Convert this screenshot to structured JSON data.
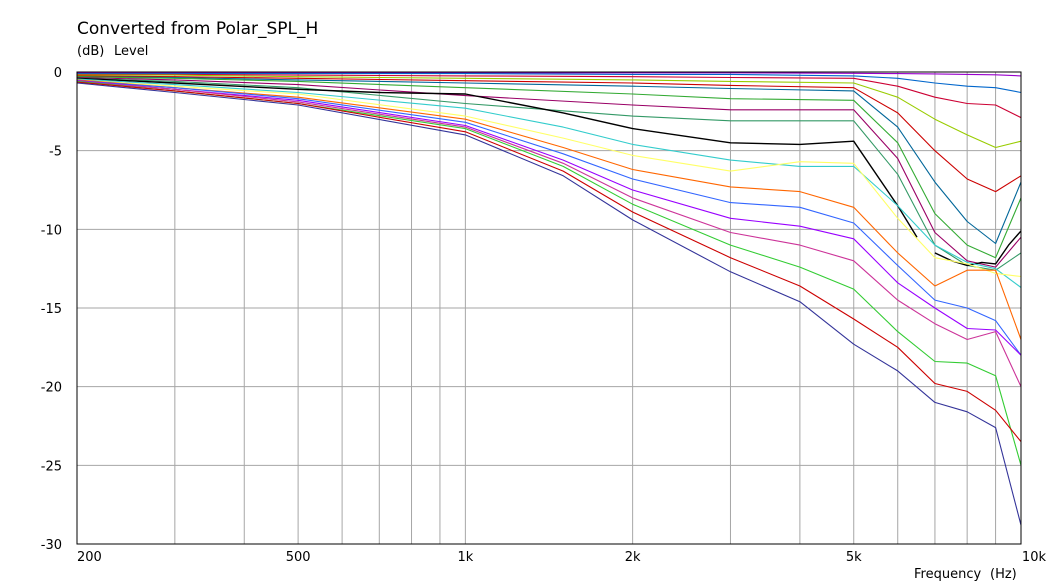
{
  "chart_data": {
    "type": "line",
    "title": "Converted from Polar_SPL_H",
    "y_unit": "(dB)",
    "ylabel": "Level",
    "xlabel": "Frequency",
    "x_unit": "(Hz)",
    "x_scale": "log",
    "xlim": [
      200,
      10000
    ],
    "ylim": [
      -30,
      0
    ],
    "x_tick_labels": [
      {
        "value": 200,
        "label": "200"
      },
      {
        "value": 500,
        "label": "500"
      },
      {
        "value": 1000,
        "label": "1k"
      },
      {
        "value": 2000,
        "label": "2k"
      },
      {
        "value": 5000,
        "label": "5k"
      },
      {
        "value": 10000,
        "label": "10k"
      }
    ],
    "y_tick_labels": [
      {
        "value": 0,
        "label": "0"
      },
      {
        "value": -5,
        "label": "-5"
      },
      {
        "value": -10,
        "label": "-10"
      },
      {
        "value": -15,
        "label": "-15"
      },
      {
        "value": -20,
        "label": "-20"
      },
      {
        "value": -25,
        "label": "-25"
      },
      {
        "value": -30,
        "label": "-30"
      }
    ],
    "grid": true,
    "series": [
      {
        "color": "#ff9900",
        "x": [
          200,
          300,
          500,
          1000,
          2000,
          3000,
          5000,
          7000,
          10000
        ],
        "y": [
          0,
          0,
          0,
          0,
          0,
          0,
          0,
          0,
          0
        ]
      },
      {
        "color": "#9900cc",
        "x": [
          200,
          300,
          500,
          1000,
          2000,
          3000,
          5000,
          6000,
          7000,
          8000,
          9000,
          10000
        ],
        "y": [
          -0.05,
          -0.05,
          -0.05,
          -0.05,
          -0.05,
          -0.05,
          -0.08,
          -0.1,
          -0.12,
          -0.15,
          -0.18,
          -0.25
        ]
      },
      {
        "color": "#0066cc",
        "x": [
          200,
          300,
          500,
          1000,
          2000,
          3000,
          5000,
          6000,
          7000,
          8000,
          9000,
          10000
        ],
        "y": [
          -0.1,
          -0.1,
          -0.1,
          -0.1,
          -0.15,
          -0.15,
          -0.25,
          -0.4,
          -0.7,
          -0.9,
          -1.0,
          -1.3
        ]
      },
      {
        "color": "#cc0033",
        "x": [
          200,
          300,
          500,
          1000,
          2000,
          3000,
          5000,
          6000,
          7000,
          8000,
          9000,
          10000
        ],
        "y": [
          -0.15,
          -0.15,
          -0.2,
          -0.25,
          -0.3,
          -0.35,
          -0.4,
          -0.9,
          -1.6,
          -2.0,
          -2.1,
          -2.9
        ]
      },
      {
        "color": "#99cc00",
        "x": [
          200,
          300,
          500,
          1000,
          2000,
          3000,
          5000,
          6000,
          7000,
          8000,
          9000,
          10000
        ],
        "y": [
          -0.2,
          -0.2,
          -0.3,
          -0.4,
          -0.5,
          -0.6,
          -0.7,
          -1.6,
          -3.0,
          -4.0,
          -4.8,
          -4.4
        ]
      },
      {
        "color": "#cc0000",
        "x": [
          200,
          300,
          500,
          1000,
          2000,
          3000,
          5000,
          6000,
          7000,
          8000,
          9000,
          10000
        ],
        "y": [
          -0.25,
          -0.3,
          -0.4,
          -0.55,
          -0.7,
          -0.85,
          -1.0,
          -2.6,
          -5.0,
          -6.8,
          -7.6,
          -6.6
        ]
      },
      {
        "color": "#006699",
        "x": [
          200,
          300,
          500,
          1000,
          2000,
          3000,
          5000,
          6000,
          7000,
          8000,
          9000,
          10000
        ],
        "y": [
          -0.3,
          -0.35,
          -0.5,
          -0.7,
          -0.9,
          -1.05,
          -1.2,
          -3.5,
          -7.0,
          -9.5,
          -10.9,
          -7.0
        ]
      },
      {
        "color": "#33aa33",
        "x": [
          200,
          300,
          500,
          1000,
          2000,
          3000,
          5000,
          6000,
          7000,
          8000,
          9000,
          10000
        ],
        "y": [
          -0.3,
          -0.4,
          -0.6,
          -1.0,
          -1.4,
          -1.7,
          -1.8,
          -4.5,
          -9.0,
          -11.0,
          -11.8,
          -8.0
        ]
      },
      {
        "color": "#990066",
        "x": [
          200,
          300,
          500,
          1000,
          2000,
          3000,
          5000,
          6000,
          7000,
          8000,
          9000,
          10000
        ],
        "y": [
          -0.35,
          -0.5,
          -0.8,
          -1.5,
          -2.1,
          -2.4,
          -2.4,
          -5.5,
          -10.2,
          -12.0,
          -12.4,
          -10.5
        ]
      },
      {
        "color": "#339966",
        "x": [
          200,
          300,
          500,
          1000,
          2000,
          3000,
          5000,
          6000,
          7000,
          8000,
          9000,
          10000
        ],
        "y": [
          -0.4,
          -0.6,
          -1.0,
          -2.0,
          -2.8,
          -3.1,
          -3.1,
          -6.5,
          -11.0,
          -12.3,
          -12.6,
          -11.5
        ]
      },
      {
        "color": "#000000",
        "x": [
          200,
          300,
          500,
          700,
          1000,
          1500,
          2000,
          3000,
          4000,
          5000,
          6000,
          6500
        ],
        "y": [
          -0.4,
          -0.7,
          -1.1,
          -1.3,
          -1.4,
          -2.6,
          -3.6,
          -4.5,
          -4.6,
          -4.4,
          -8.5,
          -10.5
        ]
      },
      {
        "color": "#000000",
        "x": [
          7000,
          7500,
          8000,
          8500,
          9000,
          9500,
          10000
        ],
        "y": [
          -11.5,
          -12.0,
          -12.3,
          -12.1,
          -12.2,
          -11.0,
          -10.1
        ]
      },
      {
        "color": "#33cccc",
        "x": [
          200,
          300,
          500,
          1000,
          1500,
          2000,
          3000,
          4000,
          5000,
          6000,
          7000,
          8000,
          9000,
          10000
        ],
        "y": [
          -0.45,
          -0.8,
          -1.3,
          -2.3,
          -3.5,
          -4.6,
          -5.6,
          -6.0,
          -6.0,
          -8.5,
          -11.0,
          -12.1,
          -12.5,
          -13.7
        ]
      },
      {
        "color": "#ffff66",
        "x": [
          200,
          300,
          500,
          1000,
          1500,
          2000,
          3000,
          4000,
          5000,
          6000,
          7000,
          8000,
          9000,
          10000
        ],
        "y": [
          -0.5,
          -0.9,
          -1.4,
          -2.8,
          -4.2,
          -5.3,
          -6.3,
          -5.7,
          -5.8,
          -9.3,
          -11.8,
          -12.2,
          -12.8,
          -13.0
        ]
      },
      {
        "color": "#ff6600",
        "x": [
          200,
          300,
          500,
          1000,
          1500,
          2000,
          3000,
          4000,
          5000,
          6000,
          7000,
          8000,
          9000,
          10000
        ],
        "y": [
          -0.5,
          -1.0,
          -1.6,
          -3.0,
          -4.8,
          -6.2,
          -7.3,
          -7.6,
          -8.6,
          -11.5,
          -13.6,
          -12.6,
          -12.6,
          -17.0
        ]
      },
      {
        "color": "#3366ff",
        "x": [
          200,
          300,
          500,
          1000,
          1500,
          2000,
          3000,
          4000,
          5000,
          6000,
          7000,
          8000,
          9000,
          10000
        ],
        "y": [
          -0.55,
          -1.0,
          -1.7,
          -3.2,
          -5.2,
          -6.8,
          -8.3,
          -8.6,
          -9.6,
          -12.3,
          -14.5,
          -15.0,
          -15.8,
          -18.0
        ]
      },
      {
        "color": "#9900ff",
        "x": [
          200,
          300,
          500,
          1000,
          1500,
          2000,
          3000,
          4000,
          5000,
          6000,
          7000,
          8000,
          9000,
          10000
        ],
        "y": [
          -0.55,
          -1.1,
          -1.8,
          -3.4,
          -5.6,
          -7.5,
          -9.3,
          -9.8,
          -10.6,
          -13.4,
          -15.0,
          -16.3,
          -16.4,
          -18.0
        ]
      },
      {
        "color": "#cc3399",
        "x": [
          200,
          300,
          500,
          1000,
          1500,
          2000,
          3000,
          4000,
          5000,
          6000,
          7000,
          8000,
          9000,
          10000
        ],
        "y": [
          -0.6,
          -1.1,
          -1.9,
          -3.5,
          -5.8,
          -8.0,
          -10.2,
          -11.0,
          -12.0,
          -14.5,
          -16.0,
          -17.0,
          -16.5,
          -20.0
        ]
      },
      {
        "color": "#33cc33",
        "x": [
          200,
          300,
          500,
          1000,
          1500,
          2000,
          3000,
          4000,
          5000,
          6000,
          7000,
          8000,
          9000,
          10000
        ],
        "y": [
          -0.6,
          -1.2,
          -2.0,
          -3.6,
          -6.0,
          -8.4,
          -11.0,
          -12.4,
          -13.8,
          -16.5,
          -18.4,
          -18.5,
          -19.3,
          -25.0
        ]
      },
      {
        "color": "#cc0000",
        "x": [
          200,
          300,
          500,
          1000,
          1500,
          2000,
          3000,
          4000,
          5000,
          6000,
          7000,
          8000,
          9000,
          10000
        ],
        "y": [
          -0.65,
          -1.2,
          -2.0,
          -3.8,
          -6.3,
          -8.9,
          -11.8,
          -13.6,
          -15.7,
          -17.5,
          -19.8,
          -20.3,
          -21.5,
          -23.5
        ]
      },
      {
        "color": "#333399",
        "x": [
          200,
          300,
          500,
          1000,
          1500,
          2000,
          3000,
          4000,
          5000,
          6000,
          7000,
          8000,
          9000,
          10000
        ],
        "y": [
          -0.7,
          -1.3,
          -2.1,
          -4.0,
          -6.6,
          -9.4,
          -12.7,
          -14.6,
          -17.3,
          -19.0,
          -21.0,
          -21.6,
          -22.6,
          -28.8
        ]
      }
    ]
  }
}
